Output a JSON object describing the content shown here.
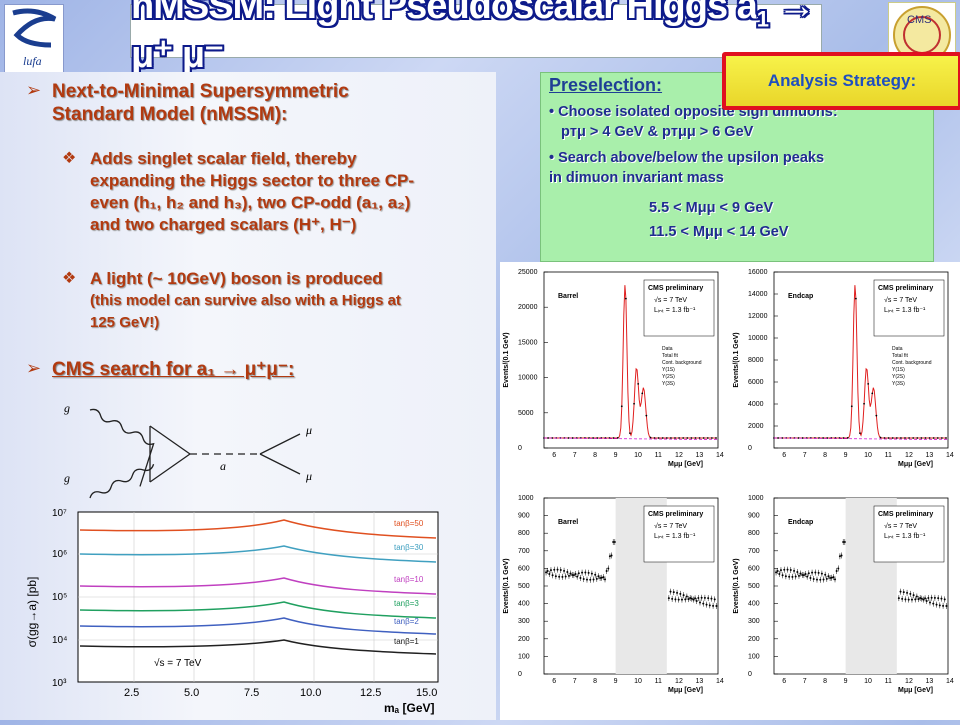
{
  "title": "nMSSM: Light Pseudoscalar Higgs a",
  "title_sub": "1",
  "title_rest": " → μ⁺ μ⁻",
  "logo_left_text": "lufa",
  "logo_right_text": "CMS",
  "left": {
    "bullet1_line1": "Next-to-Minimal Supersymmetric",
    "bullet1_line2": "Standard Model (nMSSM):",
    "sub1_line1": "Adds singlet scalar field, thereby",
    "sub1_line2": "expanding the Higgs sector to three CP-",
    "sub1_line3": "even (h₁, h₂ and h₃), two CP-odd (a₁, a₂)",
    "sub1_line4": "and two charged scalars (H⁺, H⁻)",
    "sub2_line1": " A light (~ 10GeV) boson is produced",
    "sub2_line2": "(this model can survive also with a Higgs at",
    "sub2_line3": "125 GeV!)",
    "bullet2": "CMS search for a₁ → μ⁺μ⁻:"
  },
  "preselection": {
    "title": "Preselection:",
    "line1": "• Choose isolated opposite sign dimuons:",
    "line2": "pᴛμ > 4 GeV  &  pᴛμμ > 6 GeV",
    "line3": "• Search above/below the upsilon peaks",
    "line4": "in dimuon invariant mass",
    "line5": "5.5 < Mμμ < 9 GeV",
    "line6": "11.5 < Mμμ <  14 GeV"
  },
  "strategy_label": "Analysis Strategy:",
  "feynman": {
    "g1": "g",
    "g2": "g",
    "a": "a",
    "mu1": "μ",
    "mu2": "μ"
  },
  "xsec_chart": {
    "ylabel": "σ(gg→a) [pb]",
    "xlabel": "mₐ [GeV]",
    "energy": "√s = 7 TeV",
    "xticks": [
      "2.5",
      "5.0",
      "7.5",
      "10.0",
      "12.5",
      "15.0"
    ],
    "yticks": [
      "10³",
      "10⁴",
      "10⁵",
      "10⁶",
      "10⁷"
    ],
    "curves": [
      {
        "name": "tanβ=50",
        "color": "#e05020"
      },
      {
        "name": "tanβ=30",
        "color": "#40a0c0"
      },
      {
        "name": "tanβ=10",
        "color": "#c040c0"
      },
      {
        "name": "tanβ=3",
        "color": "#20a060"
      },
      {
        "name": "tanβ=2",
        "color": "#4060c0"
      },
      {
        "name": "tanβ=1",
        "color": "#202020"
      }
    ]
  },
  "plots": {
    "top_ylabel_left": "Events/(0.1 GeV)",
    "bottom_ylabel": "Events/(0.1 GeV)",
    "region_barrel": "Barrel",
    "region_endcap": "Endcap",
    "cms": "CMS preliminary",
    "energy": "√s = 7 TeV",
    "lumi": "Lᵢₙₜ = 1.3 fb⁻¹",
    "xlabel": "Mμμ [GeV]",
    "xticks": [
      "6",
      "7",
      "8",
      "9",
      "10",
      "11",
      "12",
      "13",
      "14"
    ],
    "top_left_yticks": [
      "0",
      "5000",
      "10000",
      "15000",
      "20000",
      "25000"
    ],
    "top_right_yticks": [
      "0",
      "2000",
      "4000",
      "6000",
      "8000",
      "10000",
      "12000",
      "14000",
      "16000"
    ],
    "bottom_yticks": [
      "0",
      "100",
      "200",
      "300",
      "400",
      "500",
      "600",
      "700",
      "800",
      "900",
      "1000"
    ],
    "legend": [
      "Data",
      "Total fit",
      "Cont. background",
      "Y(1S)",
      "Y(2S)",
      "Y(3S)"
    ]
  }
}
